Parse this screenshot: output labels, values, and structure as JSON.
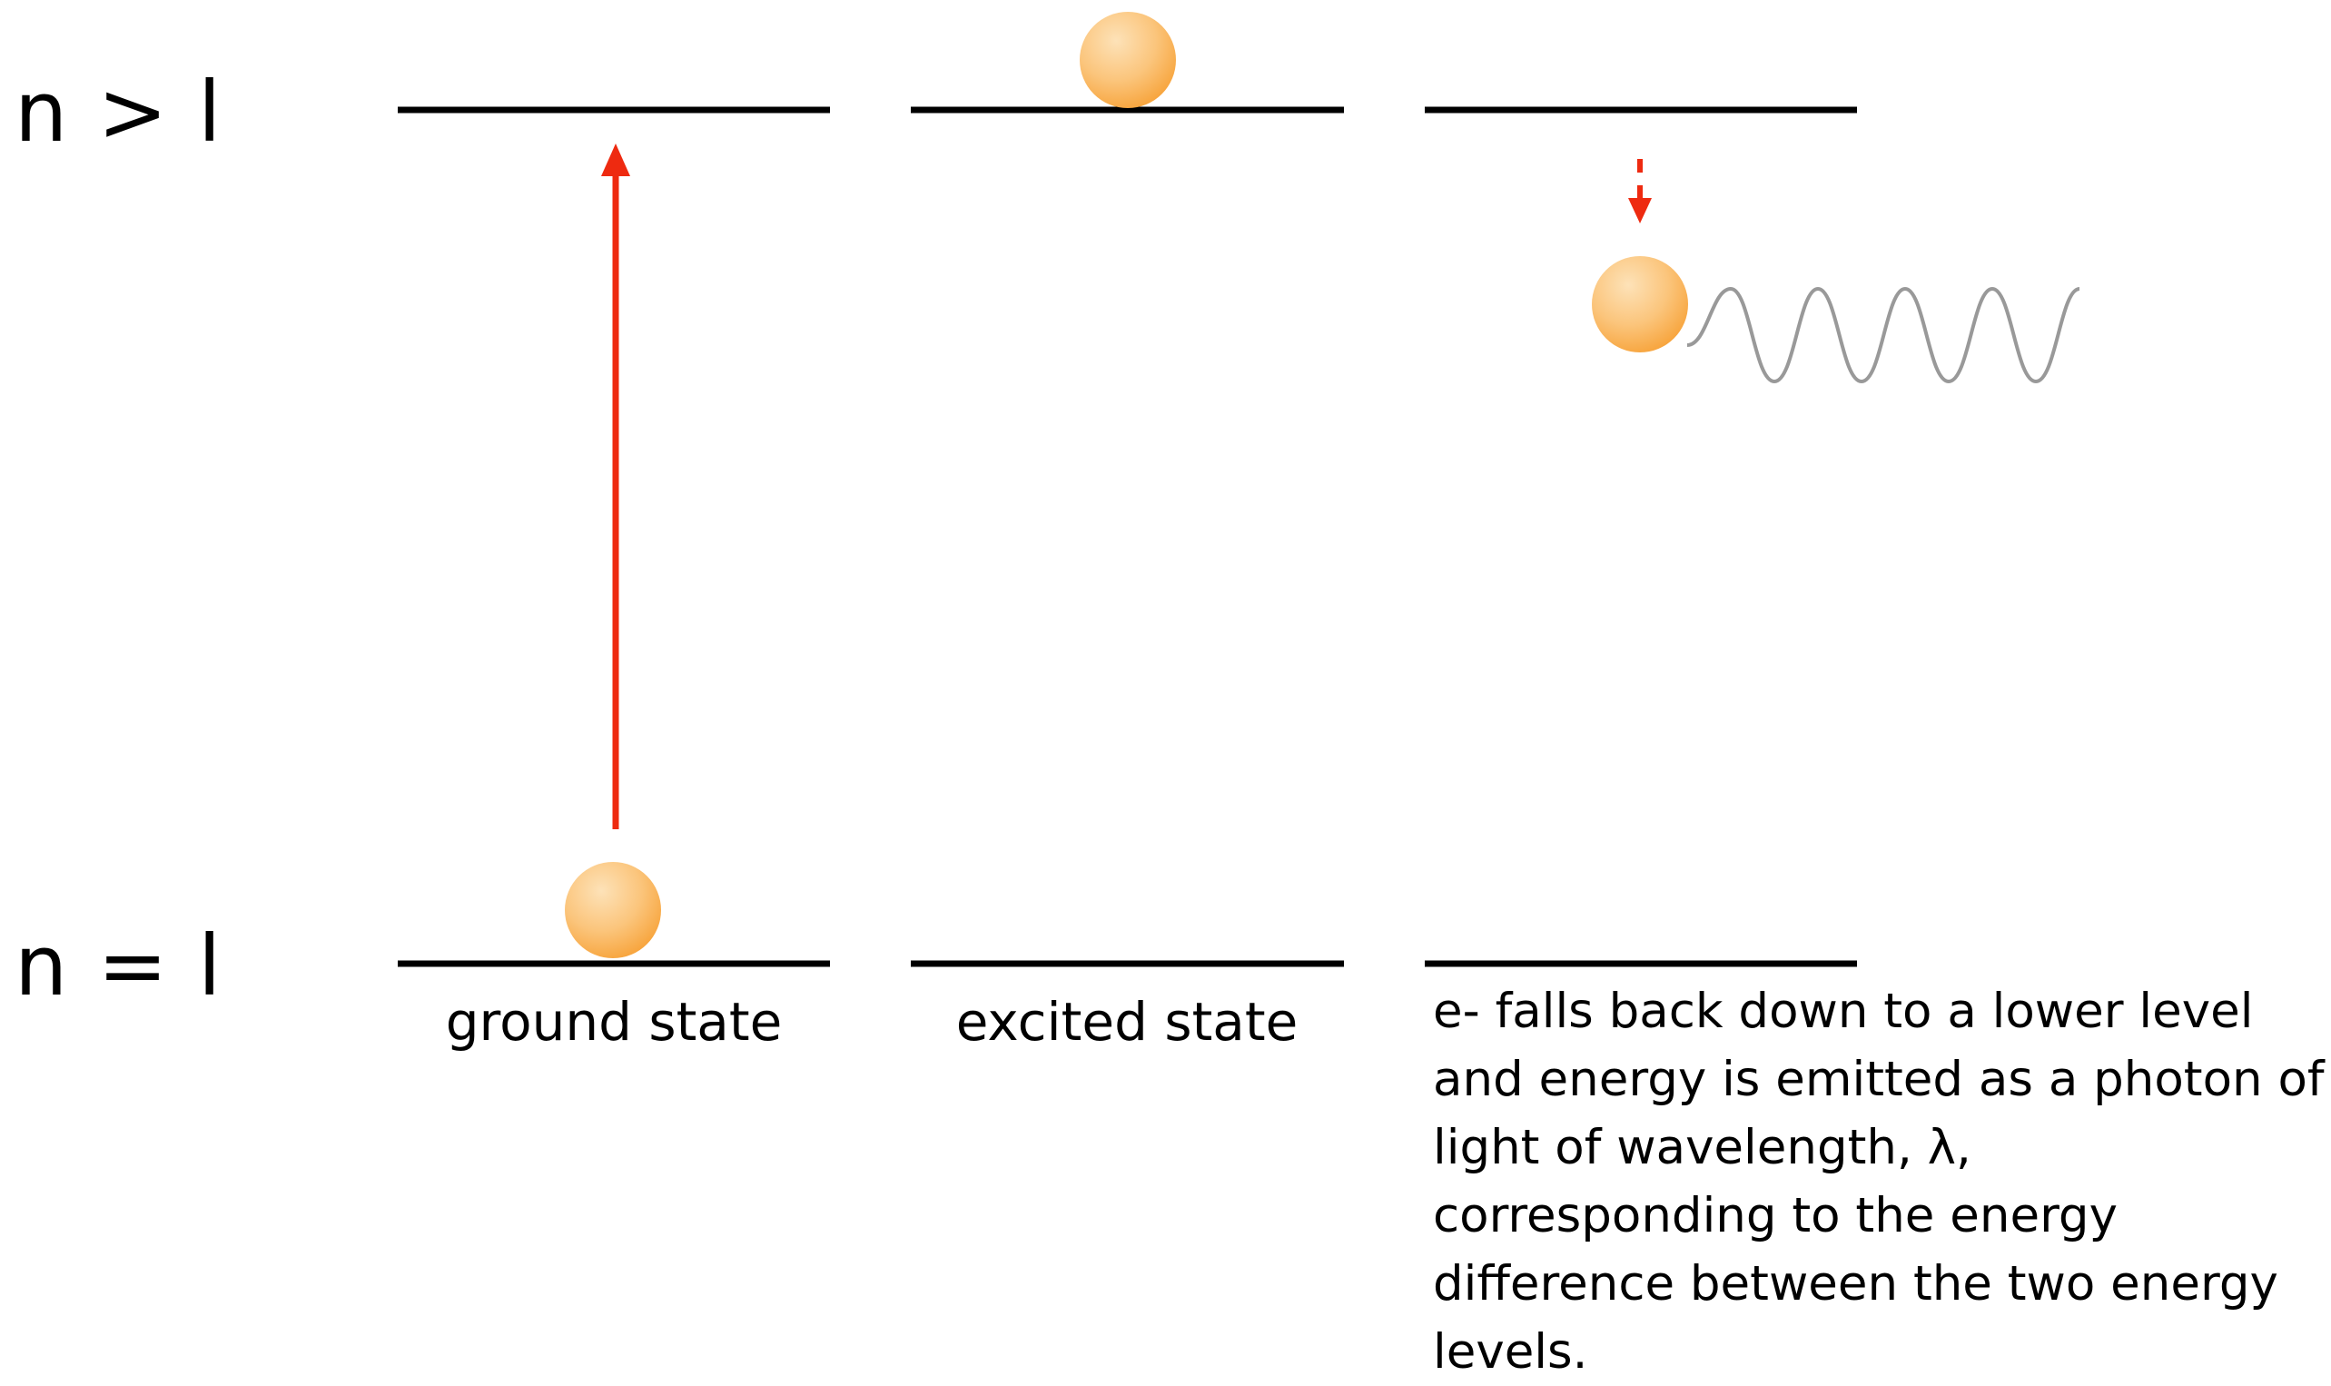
{
  "levels": {
    "upper_label": "n > l",
    "lower_label": "n = l"
  },
  "states": {
    "ground_caption": "ground state",
    "excited_caption": "excited state"
  },
  "description": "e- falls back down to a lower level and energy is emitted as a photon of light of wavelength, λ, corresponding to the energy difference between the two energy levels.",
  "colors": {
    "arrow": "#ee2a10",
    "electron_light": "#fde2b8",
    "electron_dark": "#f7a33a",
    "photon_wave": "#999999",
    "level_line": "#000000"
  },
  "icons": {
    "electron": "electron-sphere-icon",
    "photon": "photon-wave-icon"
  }
}
